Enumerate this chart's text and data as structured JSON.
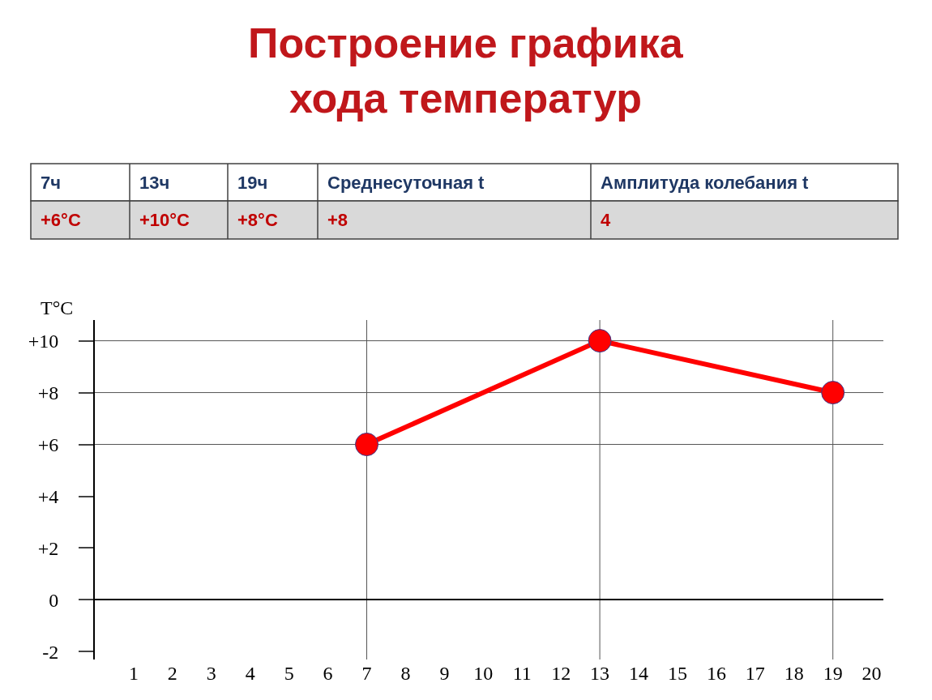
{
  "chart_data": {
    "type": "line",
    "title": "Построение графика\nхода температур",
    "ylabel": "T°C",
    "annotations": [
      "7ч",
      "13ч",
      "19ч",
      "Среднесуточная t",
      "Амплитуда колебания t",
      "+6°C",
      "+10°C",
      "+8°C",
      "+8",
      "4"
    ],
    "x": [
      7,
      13,
      19
    ],
    "series": [
      {
        "color": "#ff0000",
        "values": [
          6,
          10,
          8
        ]
      }
    ],
    "xlim": [
      0,
      20.3
    ],
    "xticks": [
      1,
      2,
      3,
      4,
      5,
      6,
      7,
      8,
      9,
      10,
      11,
      12,
      13,
      14,
      15,
      16,
      17,
      18,
      19,
      20
    ],
    "ylim": [
      -2.3,
      10.8
    ],
    "yticks": [
      {
        "value": 10,
        "label": "+10"
      },
      {
        "value": 8,
        "label": "+8"
      },
      {
        "value": 6,
        "label": "+6"
      },
      {
        "value": 4,
        "label": "+4"
      },
      {
        "value": 2,
        "label": "+2"
      },
      0,
      -2
    ],
    "ref_lines": [
      {
        "axis": "y",
        "value": 10
      },
      {
        "axis": "y",
        "value": 8
      },
      {
        "axis": "y",
        "value": 6
      },
      {
        "axis": "x",
        "value": 7
      },
      {
        "axis": "x",
        "value": 13
      },
      {
        "axis": "x",
        "value": 19
      }
    ],
    "grid": false,
    "legend": false,
    "marker": "circle",
    "line_style": "solid"
  }
}
